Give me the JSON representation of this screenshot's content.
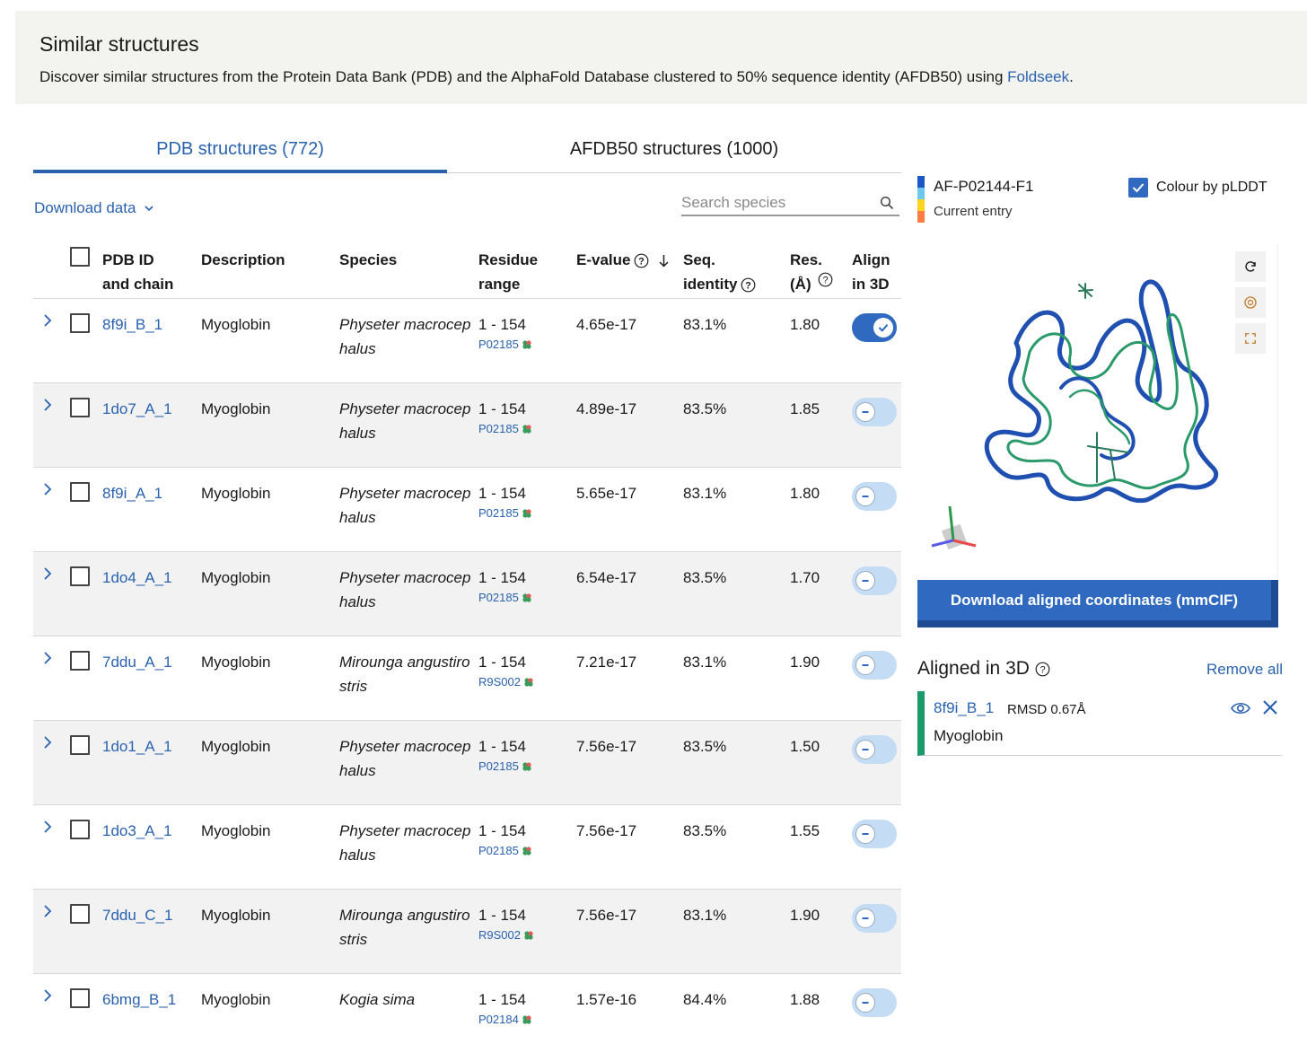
{
  "banner": {
    "title": "Similar structures",
    "text_prefix": "Discover similar structures from the Protein Data Bank (PDB) and the AlphaFold Database clustered to 50% sequence identity (AFDB50) using ",
    "link": "Foldseek",
    "text_suffix": "."
  },
  "tabs": [
    {
      "label": "PDB structures (772)",
      "active": true
    },
    {
      "label": "AFDB50 structures (1000)",
      "active": false
    }
  ],
  "download_data": "Download data",
  "search": {
    "placeholder": "Search species"
  },
  "columns": {
    "pdb_id": "PDB ID and chain",
    "description": "Description",
    "species": "Species",
    "range": "Residue range",
    "evalue": "E-value",
    "identity": "Seq. identity",
    "res": "Res. (Å)",
    "align": "Align in 3D"
  },
  "rows": [
    {
      "id": "8f9i_B_1",
      "desc": "Myoglobin",
      "species": "Physeter macrocephalus",
      "range": "1 - 154",
      "uniprot": "P02185",
      "evalue": "4.65e-17",
      "identity": "83.1%",
      "res": "1.80",
      "aligned": true
    },
    {
      "id": "1do7_A_1",
      "desc": "Myoglobin",
      "species": "Physeter macrocephalus",
      "range": "1 - 154",
      "uniprot": "P02185",
      "evalue": "4.89e-17",
      "identity": "83.5%",
      "res": "1.85",
      "aligned": false
    },
    {
      "id": "8f9i_A_1",
      "desc": "Myoglobin",
      "species": "Physeter macrocephalus",
      "range": "1 - 154",
      "uniprot": "P02185",
      "evalue": "5.65e-17",
      "identity": "83.1%",
      "res": "1.80",
      "aligned": false
    },
    {
      "id": "1do4_A_1",
      "desc": "Myoglobin",
      "species": "Physeter macrocephalus",
      "range": "1 - 154",
      "uniprot": "P02185",
      "evalue": "6.54e-17",
      "identity": "83.5%",
      "res": "1.70",
      "aligned": false
    },
    {
      "id": "7ddu_A_1",
      "desc": "Myoglobin",
      "species": "Mirounga angustirostris",
      "range": "1 - 154",
      "uniprot": "R9S002",
      "evalue": "7.21e-17",
      "identity": "83.1%",
      "res": "1.90",
      "aligned": false
    },
    {
      "id": "1do1_A_1",
      "desc": "Myoglobin",
      "species": "Physeter macrocephalus",
      "range": "1 - 154",
      "uniprot": "P02185",
      "evalue": "7.56e-17",
      "identity": "83.5%",
      "res": "1.50",
      "aligned": false
    },
    {
      "id": "1do3_A_1",
      "desc": "Myoglobin",
      "species": "Physeter macrocephalus",
      "range": "1 - 154",
      "uniprot": "P02185",
      "evalue": "7.56e-17",
      "identity": "83.5%",
      "res": "1.55",
      "aligned": false
    },
    {
      "id": "7ddu_C_1",
      "desc": "Myoglobin",
      "species": "Mirounga angustirostris",
      "range": "1 - 154",
      "uniprot": "R9S002",
      "evalue": "7.56e-17",
      "identity": "83.1%",
      "res": "1.90",
      "aligned": false
    },
    {
      "id": "6bmg_B_1",
      "desc": "Myoglobin",
      "species": "Kogia sima",
      "range": "1 - 154",
      "uniprot": "P02184",
      "evalue": "1.57e-16",
      "identity": "84.4%",
      "res": "1.88",
      "aligned": false
    }
  ],
  "viewer": {
    "entry_id": "AF-P02144-F1",
    "entry_sub": "Current entry",
    "plddt_label": "Colour by pLDDT",
    "plddt_checked": true,
    "legend_colors": [
      "#1d56c9",
      "#6cc8f0",
      "#fed51f",
      "#ff7d45"
    ],
    "download_button": "Download aligned coordinates (mmCIF)"
  },
  "aligned": {
    "title": "Aligned in 3D",
    "remove_all": "Remove all",
    "items": [
      {
        "id": "8f9i_B_1",
        "rmsd": "RMSD 0.67Å",
        "desc": "Myoglobin",
        "color": "#1c9a6c"
      }
    ]
  }
}
